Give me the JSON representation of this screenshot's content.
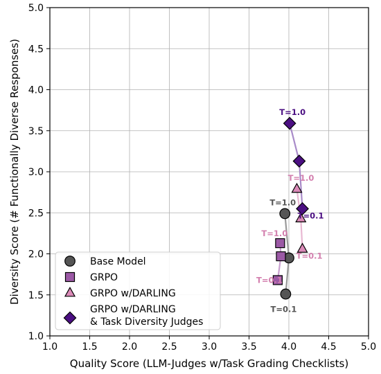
{
  "chart_data": {
    "type": "scatter",
    "title": "",
    "xlabel": "Quality Score (LLM-Judges w/Task Grading Checklists)",
    "ylabel": "Diversity Score (# Functionally Diverse Responses)",
    "xlim": [
      1.0,
      5.0
    ],
    "ylim": [
      1.0,
      5.0
    ],
    "x_ticks": [
      "1.0",
      "1.5",
      "2.0",
      "2.5",
      "3.0",
      "3.5",
      "4.0",
      "4.5",
      "5.0"
    ],
    "y_ticks": [
      "1.0",
      "1.5",
      "2.0",
      "2.5",
      "3.0",
      "3.5",
      "4.0",
      "4.5",
      "5.0"
    ],
    "grid": true,
    "legend": {
      "placement": "lower-left"
    },
    "series": [
      {
        "name": "Base Model",
        "marker": "circle",
        "color": "#555555",
        "line_color": "#999999",
        "points": [
          {
            "x": 3.95,
            "y": 2.49,
            "label": "T=1.0"
          },
          {
            "x": 4.0,
            "y": 1.95
          },
          {
            "x": 3.96,
            "y": 1.51,
            "label": "T=0.1"
          }
        ]
      },
      {
        "name": "GRPO",
        "marker": "square",
        "color": "#9b59a5",
        "line_color": "#c9a0cf",
        "points": [
          {
            "x": 3.89,
            "y": 2.13,
            "label": "T=1.0"
          },
          {
            "x": 3.9,
            "y": 1.97
          },
          {
            "x": 3.86,
            "y": 1.68,
            "label": "T=0.1"
          }
        ]
      },
      {
        "name": "GRPO w/DARLING",
        "marker": "triangle",
        "color": "#db8ab8",
        "line_color": "#e8b8d2",
        "points": [
          {
            "x": 4.1,
            "y": 2.79,
            "label": "T=1.0"
          },
          {
            "x": 4.15,
            "y": 2.43
          },
          {
            "x": 4.17,
            "y": 2.06,
            "label": "T=0.1"
          }
        ]
      },
      {
        "name": "GRPO w/DARLING\n& Task Diversity Judges",
        "marker": "diamond",
        "color": "#4b0f82",
        "line_color": "#a98bc9",
        "points": [
          {
            "x": 4.01,
            "y": 3.59,
            "label": "T=1.0"
          },
          {
            "x": 4.13,
            "y": 3.13
          },
          {
            "x": 4.17,
            "y": 2.55,
            "label": "T=0.1"
          }
        ]
      }
    ]
  }
}
